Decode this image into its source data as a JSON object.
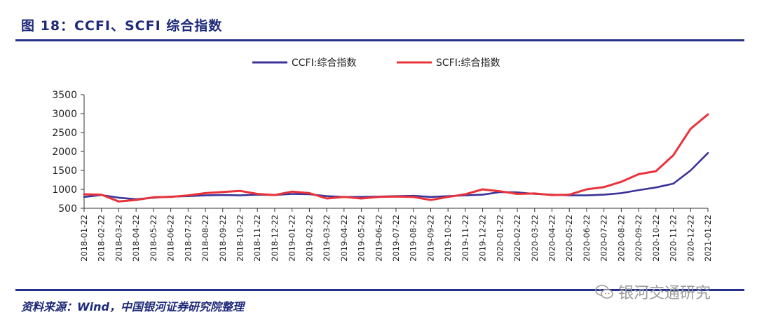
{
  "header": {
    "title": "图 18：CCFI、SCFI 综合指数"
  },
  "footer": {
    "source": "资料来源：Wind，中国银河证券研究院整理",
    "watermark": "银河交通研究",
    "watermark_icon": "wechat-icon"
  },
  "chart_data": {
    "type": "line",
    "title": "",
    "xlabel": "",
    "ylabel": "",
    "ylim": [
      500,
      3500
    ],
    "yticks": [
      500,
      1000,
      1500,
      2000,
      2500,
      3000,
      3500
    ],
    "grid": false,
    "legend_position": "top-center",
    "categories": [
      "2018-01-22",
      "2018-02-22",
      "2018-03-22",
      "2018-04-22",
      "2018-05-22",
      "2018-06-22",
      "2018-07-22",
      "2018-08-22",
      "2018-09-22",
      "2018-10-22",
      "2018-11-22",
      "2018-12-22",
      "2019-01-22",
      "2019-02-22",
      "2019-03-22",
      "2019-04-22",
      "2019-05-22",
      "2019-06-22",
      "2019-07-22",
      "2019-08-22",
      "2019-09-22",
      "2019-10-22",
      "2019-11-22",
      "2019-12-22",
      "2020-01-22",
      "2020-02-22",
      "2020-03-22",
      "2020-04-22",
      "2020-05-22",
      "2020-06-22",
      "2020-07-22",
      "2020-08-22",
      "2020-09-22",
      "2020-10-22",
      "2020-11-22",
      "2020-12-22",
      "2021-01-22"
    ],
    "series": [
      {
        "name": "CCFI:综合指数",
        "color": "#3a3399",
        "values": [
          800,
          850,
          780,
          740,
          780,
          810,
          820,
          840,
          850,
          840,
          860,
          850,
          880,
          870,
          820,
          800,
          800,
          810,
          820,
          830,
          800,
          820,
          840,
          860,
          930,
          920,
          880,
          860,
          840,
          840,
          860,
          900,
          980,
          1050,
          1150,
          1500,
          1960
        ]
      },
      {
        "name": "SCFI:综合指数",
        "color": "#e8333a",
        "values": [
          870,
          860,
          680,
          720,
          790,
          800,
          840,
          900,
          930,
          960,
          880,
          850,
          940,
          900,
          760,
          800,
          760,
          800,
          810,
          800,
          720,
          800,
          870,
          1000,
          950,
          880,
          890,
          850,
          860,
          1000,
          1060,
          1200,
          1400,
          1480,
          1900,
          2600,
          2980
        ]
      }
    ]
  }
}
